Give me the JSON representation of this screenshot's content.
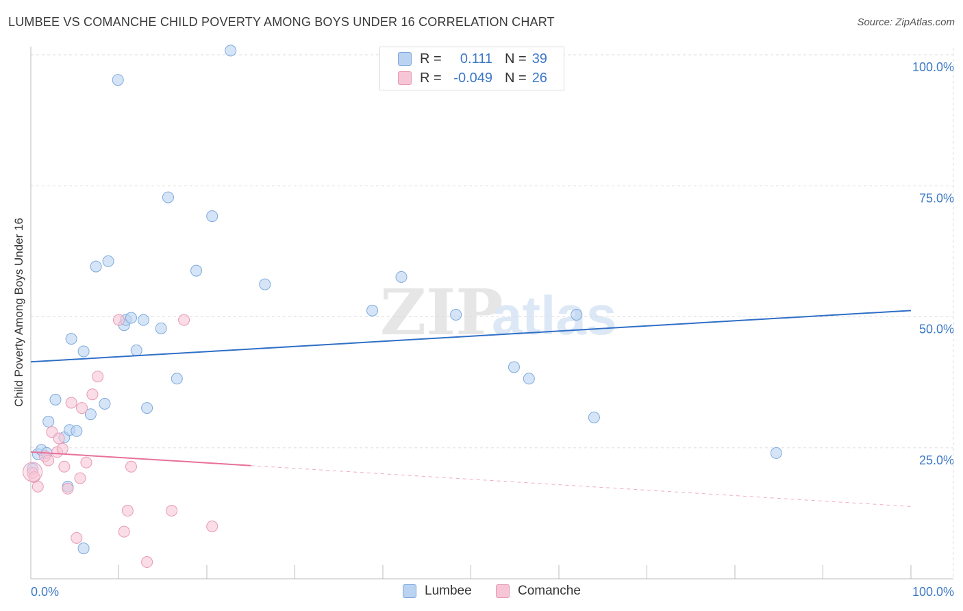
{
  "title": "LUMBEE VS COMANCHE CHILD POVERTY AMONG BOYS UNDER 16 CORRELATION CHART",
  "source": "Source: ZipAtlas.com",
  "watermark": {
    "zip": "ZIP",
    "atlas": "atlas"
  },
  "legend": {
    "rows": [
      {
        "r_label": "R =",
        "r_value": "0.111",
        "n_label": "N =",
        "n_value": "39"
      },
      {
        "r_label": "R =",
        "r_value": "-0.049",
        "n_label": "N =",
        "n_value": "26"
      }
    ]
  },
  "bottom_legend": [
    "Lumbee",
    "Comanche"
  ],
  "colors": {
    "lumbee_fill": "#b9d3f1",
    "lumbee_stroke": "#7ea9dc",
    "lumbee_line": "#2f6fc6",
    "comanche_fill": "#f6c6d6",
    "comanche_stroke": "#e79ab5",
    "comanche_line": "#e8709b",
    "tick_label": "#3b78c7",
    "grid": "#dddddd"
  },
  "chart_data": {
    "type": "scatter",
    "title": "LUMBEE VS COMANCHE CHILD POVERTY AMONG BOYS UNDER 16 CORRELATION CHART",
    "xlabel": "",
    "ylabel": "Child Poverty Among Boys Under 16",
    "xlim": [
      0,
      100
    ],
    "ylim": [
      0,
      100
    ],
    "x_tick_labels": [
      "0.0%",
      "100.0%"
    ],
    "y_tick_labels": [
      "100.0%",
      "75.0%",
      "50.0%",
      "25.0%"
    ],
    "y_ticks": [
      100,
      75,
      50,
      25
    ],
    "grid": true,
    "legend_placement": "top-center",
    "series": [
      {
        "name": "Lumbee",
        "r": 0.111,
        "n": 39,
        "trend": {
          "x": [
            0,
            100
          ],
          "y": [
            41.4,
            51.2
          ],
          "solid_until": 100
        },
        "points": [
          [
            0.2,
            21.0
          ],
          [
            0.8,
            23.8
          ],
          [
            1.2,
            24.6
          ],
          [
            1.8,
            24.0
          ],
          [
            2.0,
            30.0
          ],
          [
            2.8,
            34.2
          ],
          [
            3.8,
            27.0
          ],
          [
            4.2,
            17.6
          ],
          [
            4.4,
            28.4
          ],
          [
            5.2,
            28.2
          ],
          [
            4.6,
            45.8
          ],
          [
            6.0,
            43.4
          ],
          [
            6.0,
            5.8
          ],
          [
            6.8,
            31.4
          ],
          [
            7.4,
            59.6
          ],
          [
            8.4,
            33.4
          ],
          [
            8.8,
            60.6
          ],
          [
            9.9,
            95.2
          ],
          [
            10.6,
            48.4
          ],
          [
            10.8,
            49.4
          ],
          [
            11.4,
            49.8
          ],
          [
            12.0,
            43.6
          ],
          [
            12.8,
            49.4
          ],
          [
            13.2,
            32.6
          ],
          [
            14.8,
            47.8
          ],
          [
            15.6,
            72.8
          ],
          [
            16.6,
            38.2
          ],
          [
            18.8,
            58.8
          ],
          [
            20.6,
            69.2
          ],
          [
            22.7,
            100.8
          ],
          [
            26.6,
            56.2
          ],
          [
            38.8,
            51.2
          ],
          [
            42.1,
            57.6
          ],
          [
            48.3,
            50.4
          ],
          [
            54.9,
            40.4
          ],
          [
            56.6,
            38.2
          ],
          [
            62.0,
            50.4
          ],
          [
            64.0,
            30.8
          ],
          [
            84.7,
            24.0
          ]
        ]
      },
      {
        "name": "Comanche",
        "r": -0.049,
        "n": 26,
        "trend": {
          "x": [
            0,
            100
          ],
          "y": [
            24.2,
            13.8
          ],
          "solid_until": 25
        },
        "points": [
          [
            0.2,
            20.2
          ],
          [
            0.4,
            19.4
          ],
          [
            0.8,
            17.6
          ],
          [
            1.6,
            23.4
          ],
          [
            2.0,
            22.6
          ],
          [
            2.4,
            28.0
          ],
          [
            3.0,
            24.2
          ],
          [
            3.2,
            26.8
          ],
          [
            3.6,
            24.8
          ],
          [
            3.8,
            21.4
          ],
          [
            4.2,
            17.2
          ],
          [
            4.6,
            33.6
          ],
          [
            5.2,
            7.8
          ],
          [
            5.6,
            19.2
          ],
          [
            5.8,
            32.6
          ],
          [
            6.3,
            22.2
          ],
          [
            7.0,
            35.2
          ],
          [
            7.6,
            38.6
          ],
          [
            10.0,
            49.4
          ],
          [
            10.6,
            9.0
          ],
          [
            11.0,
            13.0
          ],
          [
            11.4,
            21.4
          ],
          [
            13.2,
            3.2
          ],
          [
            16.0,
            13.0
          ],
          [
            17.4,
            49.4
          ],
          [
            20.6,
            10.0
          ]
        ]
      }
    ]
  }
}
